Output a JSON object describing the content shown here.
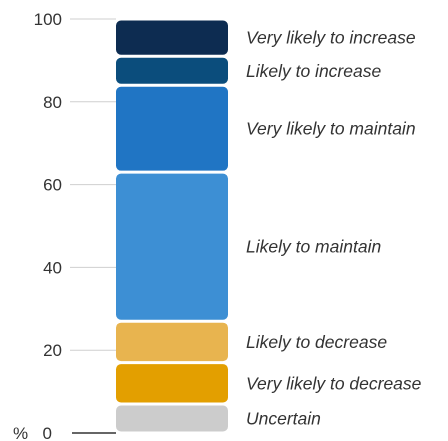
{
  "chart_data": {
    "type": "bar",
    "stacked": true,
    "title": "",
    "xlabel": "",
    "ylabel": "%",
    "ylim": [
      0,
      100
    ],
    "yticks": [
      {
        "value": 0,
        "label": "0"
      },
      {
        "value": 20,
        "label": "20"
      },
      {
        "value": 40,
        "label": "40"
      },
      {
        "value": 60,
        "label": "60"
      },
      {
        "value": 80,
        "label": "80"
      },
      {
        "value": 100,
        "label": "100"
      }
    ],
    "grid": false,
    "legend": "right-of-bar labels",
    "series": [
      {
        "name": "Uncertain",
        "value": 7,
        "color": "#cccccc"
      },
      {
        "name": "Very likely to decrease",
        "value": 10,
        "color": "#e39f00"
      },
      {
        "name": "Likely to decrease",
        "value": 10,
        "color": "#e8b44f"
      },
      {
        "name": "Likely to maintain",
        "value": 36,
        "color": "#3d8fd4"
      },
      {
        "name": "Very likely to maintain",
        "value": 21,
        "color": "#2075c4"
      },
      {
        "name": "Likely to increase",
        "value": 7,
        "color": "#0b4d7c"
      },
      {
        "name": "Very likely to increase",
        "value": 9,
        "color": "#0d2c51"
      }
    ],
    "axis_color": "#333333"
  }
}
